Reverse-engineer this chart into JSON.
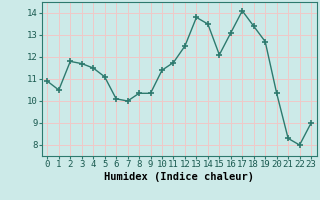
{
  "x": [
    0,
    1,
    2,
    3,
    4,
    5,
    6,
    7,
    8,
    9,
    10,
    11,
    12,
    13,
    14,
    15,
    16,
    17,
    18,
    19,
    20,
    21,
    22,
    23
  ],
  "y": [
    10.9,
    10.5,
    11.8,
    11.7,
    11.5,
    11.1,
    10.1,
    10.0,
    10.35,
    10.35,
    11.4,
    11.75,
    12.5,
    13.8,
    13.5,
    12.1,
    13.1,
    14.1,
    13.4,
    12.7,
    10.35,
    8.3,
    8.0,
    9.0
  ],
  "line_color": "#2d7a6e",
  "marker_color": "#2d7a6e",
  "bg_color": "#cceae8",
  "grid_color_h": "#f0c8c8",
  "grid_color_v": "#f0c8c8",
  "xlabel": "Humidex (Indice chaleur)",
  "ylim": [
    7.5,
    14.5
  ],
  "xlim": [
    -0.5,
    23.5
  ],
  "yticks": [
    8,
    9,
    10,
    11,
    12,
    13,
    14
  ],
  "xticks": [
    0,
    1,
    2,
    3,
    4,
    5,
    6,
    7,
    8,
    9,
    10,
    11,
    12,
    13,
    14,
    15,
    16,
    17,
    18,
    19,
    20,
    21,
    22,
    23
  ],
  "xlabel_fontsize": 7.5,
  "tick_fontsize": 6.5
}
